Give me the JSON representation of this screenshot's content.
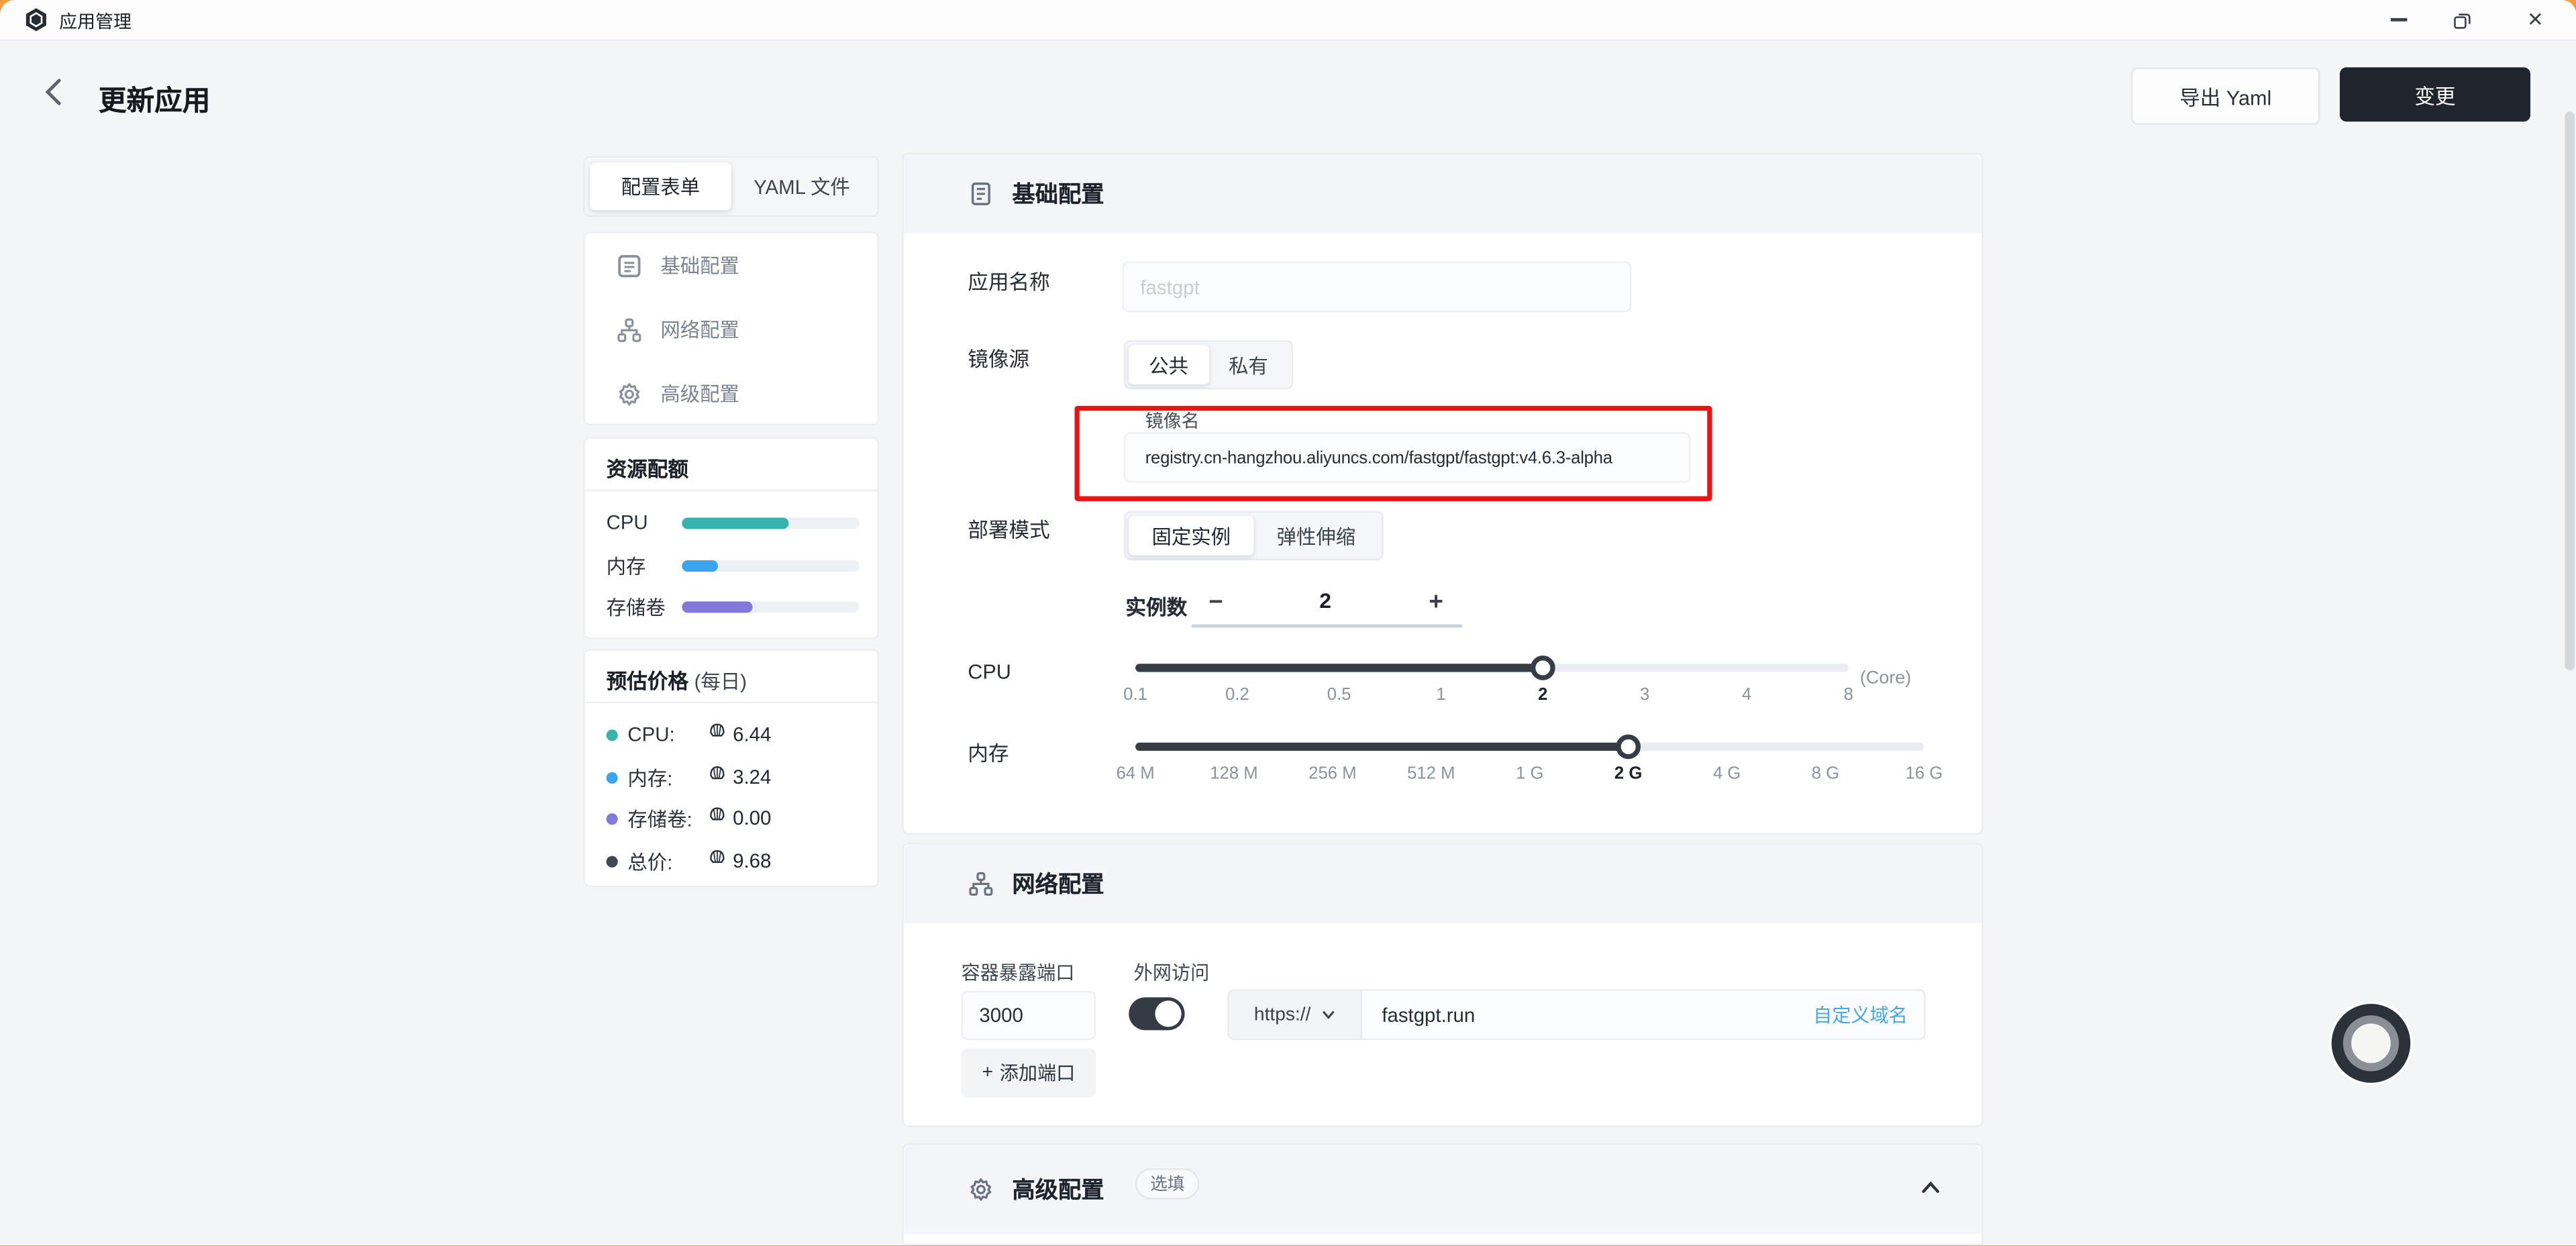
{
  "window": {
    "title": "应用管理",
    "close_glyph": "✕"
  },
  "header": {
    "title": "更新应用",
    "export_button": "导出 Yaml",
    "apply_button": "变更"
  },
  "sidebar": {
    "tabs": [
      {
        "label": "配置表单",
        "active": true
      },
      {
        "label": "YAML 文件",
        "active": false
      }
    ],
    "nav": [
      {
        "label": "基础配置"
      },
      {
        "label": "网络配置"
      },
      {
        "label": "高级配置"
      }
    ],
    "quota": {
      "title": "资源配额",
      "rows": [
        {
          "label": "CPU",
          "percent": 60,
          "color": "#36b3ab"
        },
        {
          "label": "内存",
          "percent": 20,
          "color": "#3ca5ef"
        },
        {
          "label": "存储卷",
          "percent": 40,
          "color": "#8478d8"
        }
      ]
    },
    "price": {
      "title": "预估价格",
      "subtitle": "(每日)",
      "rows": [
        {
          "label": "CPU:",
          "value": "6.44",
          "color": "#36b3ab"
        },
        {
          "label": "内存:",
          "value": "3.24",
          "color": "#3ca5ef"
        },
        {
          "label": "存储卷:",
          "value": "0.00",
          "color": "#8478d8"
        },
        {
          "label": "总价:",
          "value": "9.68",
          "color": "#414852"
        }
      ]
    }
  },
  "basic": {
    "title": "基础配置",
    "app_name_label": "应用名称",
    "app_name_placeholder": "fastgpt",
    "image_source_label": "镜像源",
    "image_tabs": [
      {
        "label": "公共",
        "active": true
      },
      {
        "label": "私有",
        "active": false
      }
    ],
    "image_name_label": "镜像名",
    "image_name_value": "registry.cn-hangzhou.aliyuncs.com/fastgpt/fastgpt:v4.6.3-alpha",
    "deploy_mode_label": "部署模式",
    "deploy_tabs": [
      {
        "label": "固定实例",
        "active": true
      },
      {
        "label": "弹性伸缩",
        "active": false
      }
    ],
    "replicas_label": "实例数",
    "replicas_value": "2",
    "cpu": {
      "label": "CPU",
      "unit": "(Core)",
      "ticks": [
        "0.1",
        "0.2",
        "0.5",
        "1",
        "2",
        "3",
        "4",
        "8"
      ],
      "selected": "2",
      "selected_index": 4
    },
    "memory": {
      "label": "内存",
      "ticks": [
        "64 M",
        "128 M",
        "256 M",
        "512 M",
        "1 G",
        "2 G",
        "4 G",
        "8 G",
        "16 G"
      ],
      "selected": "2 G",
      "selected_index": 5
    }
  },
  "network": {
    "title": "网络配置",
    "port_label": "容器暴露端口",
    "port_value": "3000",
    "external_label": "外网访问",
    "external_on": true,
    "protocol": "https://",
    "domain": "fastgpt.run",
    "custom_domain_link": "自定义域名",
    "add_port_label": "添加端口",
    "plus_glyph": "+"
  },
  "advanced": {
    "title": "高级配置",
    "badge": "选填"
  },
  "stepper": {
    "minus_glyph": "−",
    "plus_glyph": "+"
  }
}
